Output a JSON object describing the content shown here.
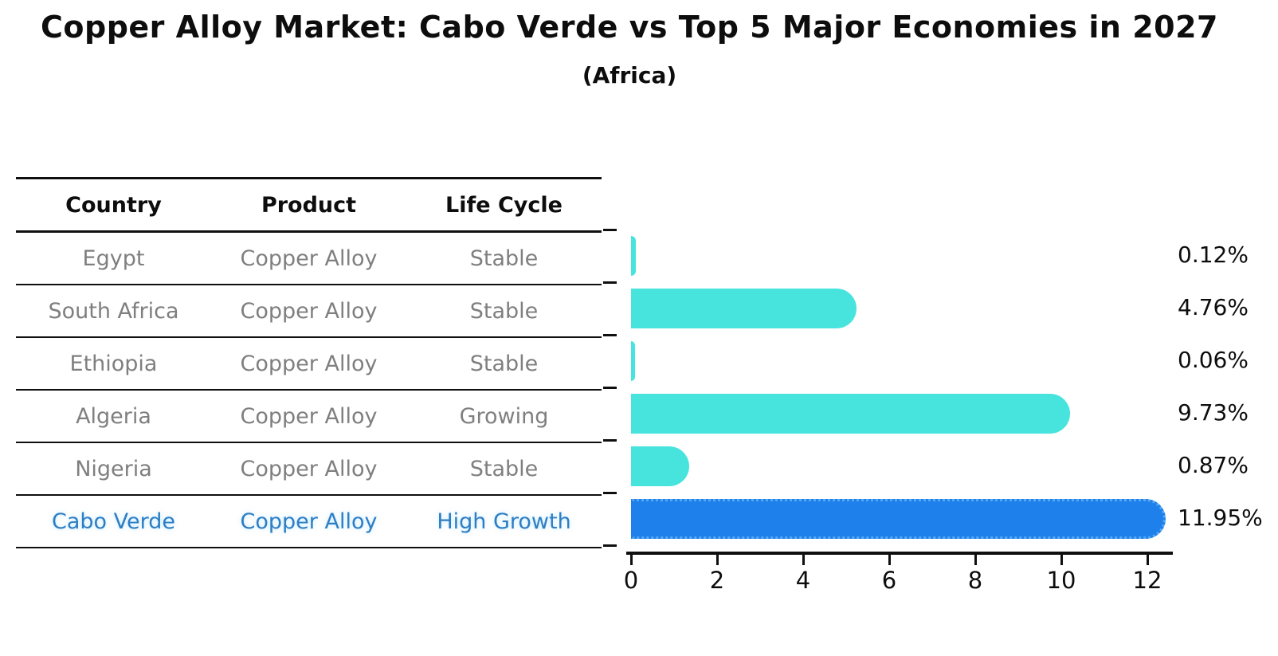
{
  "header": {
    "title": "Copper Alloy Market: Cabo Verde vs Top 5 Major Economies in 2027",
    "subtitle": "(Africa)"
  },
  "table": {
    "columns": [
      "Country",
      "Product",
      "Life Cycle"
    ],
    "rows": [
      {
        "country": "Egypt",
        "product": "Copper Alloy",
        "life_cycle": "Stable",
        "highlighted": false
      },
      {
        "country": "South Africa",
        "product": "Copper Alloy",
        "life_cycle": "Stable",
        "highlighted": false
      },
      {
        "country": "Ethiopia",
        "product": "Copper Alloy",
        "life_cycle": "Stable",
        "highlighted": false
      },
      {
        "country": "Algeria",
        "product": "Copper Alloy",
        "life_cycle": "Growing",
        "highlighted": false
      },
      {
        "country": "Nigeria",
        "product": "Copper Alloy",
        "life_cycle": "Stable",
        "highlighted": false
      },
      {
        "country": "Cabo Verde",
        "product": "Copper Alloy",
        "life_cycle": "High Growth",
        "highlighted": true
      }
    ]
  },
  "chart_data": {
    "type": "bar",
    "orientation": "horizontal",
    "title": "Copper Alloy Market: Cabo Verde vs Top 5 Major Economies in 2027",
    "subtitle": "(Africa)",
    "categories": [
      "Egypt",
      "South Africa",
      "Ethiopia",
      "Algeria",
      "Nigeria",
      "Cabo Verde"
    ],
    "values": [
      0.12,
      4.76,
      0.06,
      9.73,
      0.87,
      11.95
    ],
    "value_labels": [
      "0.12%",
      "4.76%",
      "0.06%",
      "9.73%",
      "0.87%",
      "11.95%"
    ],
    "highlight_index": 5,
    "x_ticks": [
      0,
      2,
      4,
      6,
      8,
      10,
      12
    ],
    "xlim": [
      0,
      12.6
    ],
    "grid": false,
    "legend": "none",
    "bar_color_default": "#47e4de",
    "bar_color_highlight": "#1e80eb",
    "highlight_edge_style": "dotted",
    "value_label_color": "#0d0d0d"
  },
  "colors": {
    "background": "#ffffff",
    "table_line": "#0f0f0f",
    "table_text_muted": "#7f7f7f",
    "highlight_text": "#2e7ec4",
    "axis": "#0f0f0f"
  }
}
